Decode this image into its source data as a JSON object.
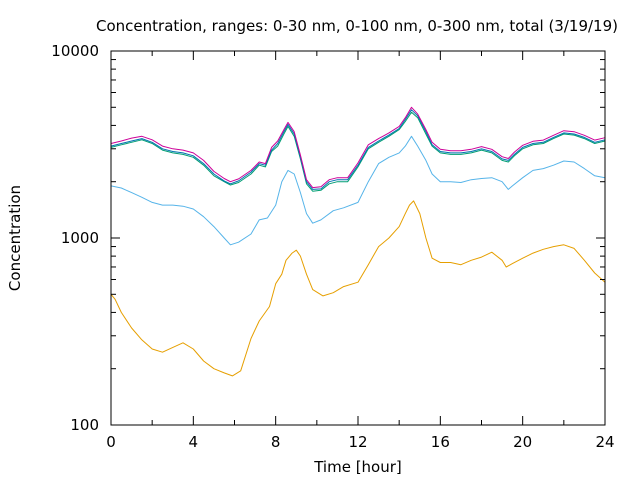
{
  "chart_data": {
    "type": "line",
    "title": "Concentration, ranges: 0-30 nm, 0-100 nm, 0-300 nm, total (3/19/19)",
    "xlabel": "Time [hour]",
    "ylabel": "Concentration",
    "xlim": [
      0,
      24
    ],
    "ylim": [
      100,
      10000
    ],
    "yscale": "log",
    "xticks": [
      0,
      4,
      8,
      12,
      16,
      20,
      24
    ],
    "xtick_labels": [
      "0",
      "4",
      "8",
      "12",
      "16",
      "20",
      "24"
    ],
    "yticks": [
      100,
      1000,
      10000
    ],
    "ytick_labels": [
      "100",
      "1000",
      "10000"
    ],
    "grid": false,
    "legend": "none",
    "series": [
      {
        "color": "#e69f00",
        "x": [
          0,
          0.2,
          0.5,
          1,
          1.5,
          2,
          2.5,
          3,
          3.5,
          4,
          4.5,
          5,
          5.5,
          5.9,
          6.3,
          6.8,
          7.2,
          7.7,
          8,
          8.3,
          8.5,
          8.8,
          9,
          9.2,
          9.5,
          9.8,
          10.3,
          10.8,
          11.3,
          12,
          12.5,
          13,
          13.5,
          14,
          14.3,
          14.5,
          14.7,
          15,
          15.3,
          15.6,
          16,
          16.5,
          17,
          17.5,
          18,
          18.5,
          19,
          19.2,
          19.5,
          20,
          20.5,
          21,
          21.5,
          22,
          22.5,
          23,
          23.5,
          24
        ],
        "values": [
          500,
          470,
          400,
          330,
          285,
          255,
          245,
          260,
          275,
          255,
          220,
          200,
          190,
          183,
          195,
          290,
          360,
          430,
          570,
          640,
          760,
          830,
          860,
          800,
          640,
          530,
          490,
          510,
          550,
          580,
          720,
          900,
          1000,
          1150,
          1350,
          1500,
          1580,
          1350,
          1000,
          780,
          740,
          740,
          720,
          760,
          790,
          840,
          760,
          700,
          730,
          780,
          830,
          870,
          900,
          920,
          880,
          760,
          650,
          580
        ]
      },
      {
        "color": "#56b4e9",
        "x": [
          0,
          0.5,
          1,
          1.5,
          2,
          2.5,
          3,
          3.5,
          4,
          4.5,
          5,
          5.5,
          5.8,
          6.2,
          6.8,
          7.2,
          7.6,
          8,
          8.3,
          8.6,
          8.9,
          9.2,
          9.5,
          9.8,
          10.2,
          10.8,
          11.3,
          12,
          12.5,
          13,
          13.5,
          14,
          14.3,
          14.6,
          14.9,
          15.3,
          15.6,
          16,
          16.5,
          17,
          17.5,
          18,
          18.5,
          19,
          19.3,
          19.5,
          20,
          20.5,
          21,
          21.5,
          22,
          22.5,
          23,
          23.5,
          24
        ],
        "values": [
          1900,
          1850,
          1750,
          1650,
          1550,
          1500,
          1500,
          1480,
          1430,
          1300,
          1150,
          1000,
          920,
          950,
          1050,
          1250,
          1280,
          1500,
          2000,
          2300,
          2200,
          1750,
          1350,
          1200,
          1250,
          1400,
          1450,
          1550,
          2000,
          2500,
          2700,
          2850,
          3100,
          3500,
          3100,
          2600,
          2200,
          2000,
          2000,
          1980,
          2050,
          2080,
          2100,
          2000,
          1820,
          1900,
          2100,
          2300,
          2350,
          2450,
          2580,
          2550,
          2350,
          2150,
          2100
        ]
      },
      {
        "color": "#009e73",
        "x": [
          0,
          0.5,
          1,
          1.5,
          2,
          2.5,
          3,
          3.5,
          4,
          4.5,
          5,
          5.5,
          5.8,
          6.2,
          6.8,
          7.2,
          7.5,
          7.8,
          8.1,
          8.4,
          8.6,
          8.9,
          9.2,
          9.5,
          9.8,
          10.2,
          10.6,
          11,
          11.5,
          12,
          12.5,
          13,
          13.5,
          14,
          14.3,
          14.6,
          14.9,
          15.3,
          15.6,
          16,
          16.5,
          17,
          17.5,
          18,
          18.5,
          19,
          19.3,
          19.6,
          20,
          20.5,
          21,
          21.5,
          22,
          22.5,
          23,
          23.5,
          24
        ],
        "values": [
          3050,
          3150,
          3250,
          3350,
          3200,
          2950,
          2850,
          2800,
          2700,
          2450,
          2150,
          2000,
          1920,
          1980,
          2200,
          2450,
          2400,
          2900,
          3100,
          3600,
          3950,
          3500,
          2650,
          1950,
          1780,
          1800,
          1950,
          2000,
          2000,
          2400,
          3000,
          3250,
          3500,
          3800,
          4200,
          4700,
          4400,
          3600,
          3100,
          2850,
          2800,
          2800,
          2850,
          2950,
          2850,
          2600,
          2550,
          2750,
          3000,
          3150,
          3200,
          3400,
          3600,
          3550,
          3400,
          3200,
          3300
        ]
      },
      {
        "color": "#0072b2",
        "x": [
          0,
          0.5,
          1,
          1.5,
          2,
          2.5,
          3,
          3.5,
          4,
          4.5,
          5,
          5.5,
          5.8,
          6.2,
          6.8,
          7.2,
          7.5,
          7.8,
          8.1,
          8.4,
          8.6,
          8.9,
          9.2,
          9.5,
          9.8,
          10.2,
          10.6,
          11,
          11.5,
          12,
          12.5,
          13,
          13.5,
          14,
          14.3,
          14.6,
          14.9,
          15.3,
          15.6,
          16,
          16.5,
          17,
          17.5,
          18,
          18.5,
          19,
          19.3,
          19.6,
          20,
          20.5,
          21,
          21.5,
          22,
          22.5,
          23,
          23.5,
          24
        ],
        "values": [
          3100,
          3200,
          3300,
          3400,
          3250,
          3000,
          2900,
          2850,
          2750,
          2500,
          2200,
          2020,
          1950,
          2020,
          2250,
          2500,
          2450,
          2950,
          3200,
          3700,
          4050,
          3600,
          2700,
          2000,
          1820,
          1830,
          2000,
          2050,
          2050,
          2450,
          3050,
          3300,
          3550,
          3850,
          4300,
          4850,
          4500,
          3700,
          3150,
          2900,
          2850,
          2850,
          2900,
          3000,
          2900,
          2650,
          2600,
          2800,
          3050,
          3200,
          3250,
          3450,
          3650,
          3600,
          3450,
          3250,
          3350
        ]
      },
      {
        "color": "#cc0099",
        "x": [
          0,
          0.5,
          1,
          1.5,
          2,
          2.5,
          3,
          3.5,
          4,
          4.5,
          5,
          5.5,
          5.8,
          6.2,
          6.8,
          7.2,
          7.5,
          7.8,
          8.1,
          8.4,
          8.6,
          8.9,
          9.2,
          9.5,
          9.8,
          10.2,
          10.6,
          11,
          11.5,
          12,
          12.5,
          13,
          13.5,
          14,
          14.3,
          14.6,
          14.9,
          15.3,
          15.6,
          16,
          16.5,
          17,
          17.5,
          18,
          18.5,
          19,
          19.3,
          19.6,
          20,
          20.5,
          21,
          21.5,
          22,
          22.5,
          23,
          23.5,
          24
        ],
        "values": [
          3200,
          3300,
          3420,
          3500,
          3350,
          3100,
          3000,
          2950,
          2850,
          2600,
          2270,
          2080,
          2000,
          2070,
          2300,
          2550,
          2500,
          3050,
          3300,
          3800,
          4150,
          3700,
          2780,
          2050,
          1860,
          1880,
          2050,
          2100,
          2100,
          2520,
          3150,
          3400,
          3650,
          3950,
          4400,
          5000,
          4600,
          3800,
          3250,
          2980,
          2930,
          2930,
          2980,
          3080,
          2980,
          2720,
          2660,
          2880,
          3130,
          3290,
          3340,
          3540,
          3750,
          3700,
          3540,
          3340,
          3440
        ]
      }
    ]
  }
}
